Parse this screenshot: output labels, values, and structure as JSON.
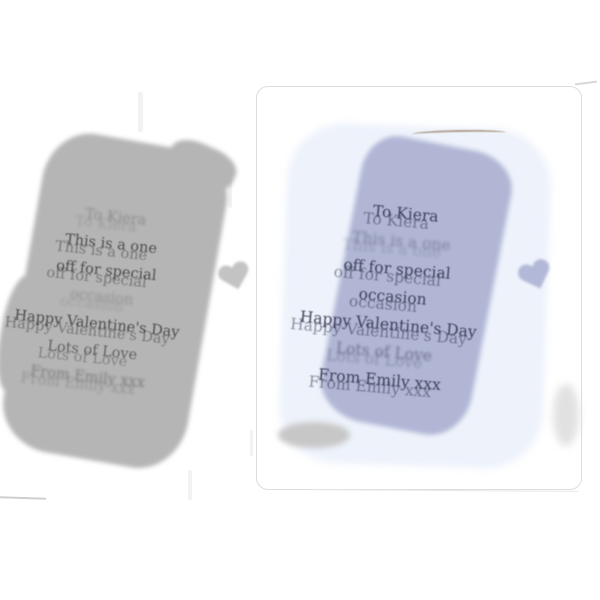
{
  "product": {
    "message_lines": [
      "To Kiera",
      "This is a one",
      "off for special",
      "occasion",
      "Happy Valentine's Day",
      "Lots of Love",
      "From Emily xxx"
    ]
  },
  "icons": {
    "left_heart": "heart-icon",
    "right_heart": "heart-icon"
  },
  "colors": {
    "coaster_grey": "#b5b5b5",
    "panel_periwinkle": "#b0b6d4",
    "halo": "#edf2fb",
    "text_dark": "#2f3147",
    "heart_left": "#c3c3c3",
    "heart_right": "#b2b8d7",
    "card_border": "#dcdce1"
  }
}
